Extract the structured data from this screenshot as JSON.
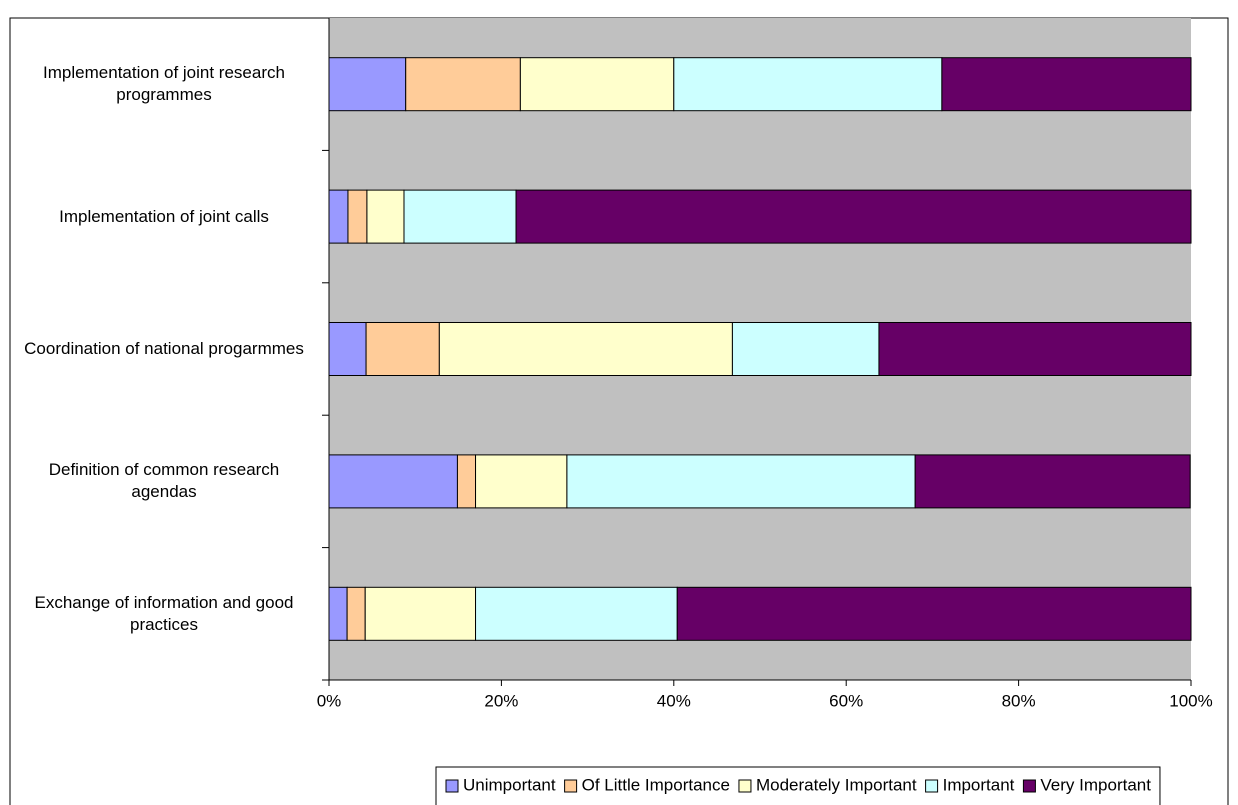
{
  "chart_data": {
    "type": "stacked-bar-horizontal-percent",
    "categories": [
      "Implementation of joint research programmes",
      "Implementation of joint calls",
      "Coordination of national progarmmes",
      "Definition of common research agendas",
      "Exchange of information and good practices"
    ],
    "series": [
      {
        "name": "Unimportant",
        "color": "#9999ff",
        "values": [
          8.9,
          2.2,
          4.3,
          14.9,
          2.1
        ]
      },
      {
        "name": "Of Little Importance",
        "color": "#ffcc99",
        "values": [
          13.3,
          2.2,
          8.5,
          2.1,
          2.1
        ]
      },
      {
        "name": "Moderately Important",
        "color": "#ffffcc",
        "values": [
          17.8,
          4.3,
          34.0,
          10.6,
          12.8
        ]
      },
      {
        "name": "Important",
        "color": "#ccffff",
        "values": [
          31.1,
          13.0,
          17.0,
          40.4,
          23.4
        ]
      },
      {
        "name": "Very Important",
        "color": "#660066",
        "values": [
          28.9,
          78.3,
          36.2,
          31.9,
          59.6
        ]
      }
    ],
    "xlim": [
      0,
      100
    ],
    "xticks": [
      {
        "value": 0,
        "label": "0%"
      },
      {
        "value": 20,
        "label": "20%"
      },
      {
        "value": 40,
        "label": "40%"
      },
      {
        "value": 60,
        "label": "60%"
      },
      {
        "value": 80,
        "label": "80%"
      },
      {
        "value": 100,
        "label": "100%"
      }
    ],
    "plot_background": "#c0c0c0",
    "legend": "bottom"
  }
}
